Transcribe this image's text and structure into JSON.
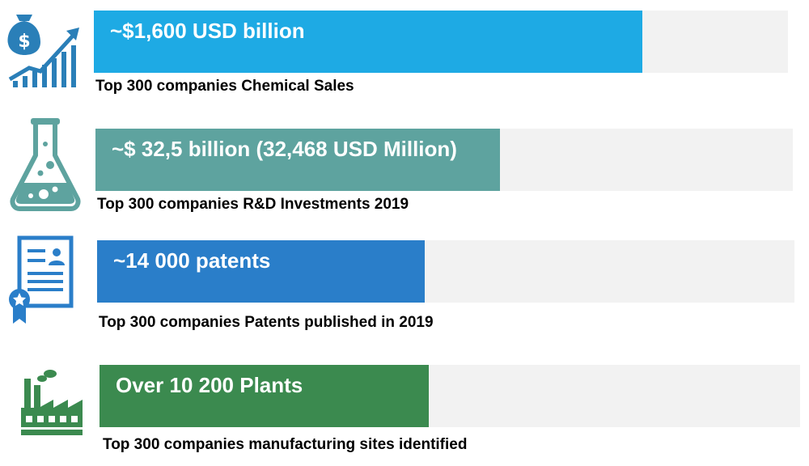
{
  "chart_data": {
    "type": "bar",
    "orientation": "horizontal",
    "items": [
      {
        "value_label": "~$1,600 USD billion",
        "caption": "Top 300 companies Chemical Sales",
        "fill_fraction": 0.79,
        "color": "#1eaae4",
        "icon": "money-bag-growth-icon"
      },
      {
        "value_label": "~$ 32,5 billion (32,468 USD Million)",
        "caption": "Top 300 companies R&D Investments 2019",
        "fill_fraction": 0.58,
        "color": "#5ea39f",
        "icon": "flask-icon"
      },
      {
        "value_label": "~14 000 patents",
        "caption": "Top 300 companies Patents published in 2019",
        "fill_fraction": 0.47,
        "color": "#2a7ec9",
        "icon": "certificate-icon"
      },
      {
        "value_label": "Over 10 200 Plants",
        "caption": "Top 300 companies manufacturing sites identified",
        "fill_fraction": 0.47,
        "color": "#3b8a4f",
        "icon": "factory-icon"
      }
    ],
    "track_color": "#f2f2f2"
  }
}
